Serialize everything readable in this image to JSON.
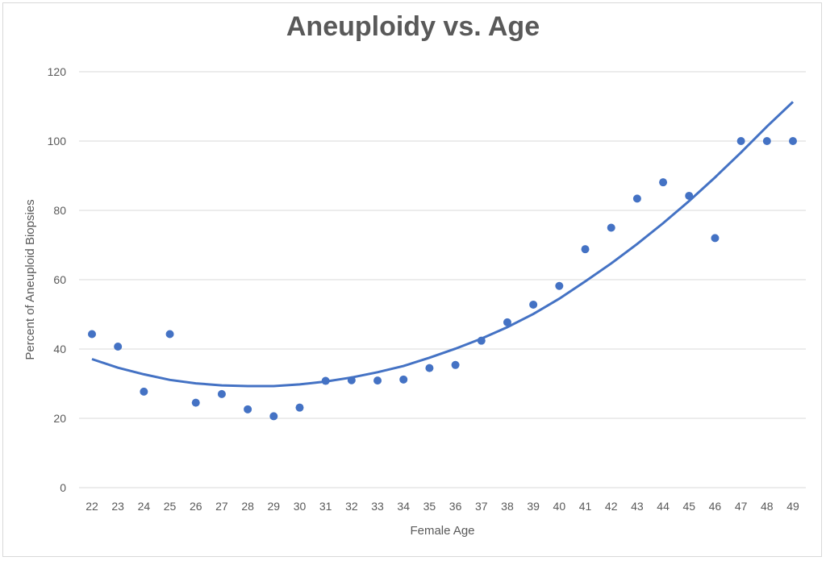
{
  "chart_data": {
    "type": "scatter",
    "title": "Aneuploidy vs. Age",
    "xlabel": "Female Age",
    "ylabel": "Percent of Aneuploid Biopsies",
    "ylim": [
      0,
      120
    ],
    "y_ticks": [
      "0",
      "20",
      "40",
      "60",
      "80",
      "100",
      "120"
    ],
    "x_ticks": [
      "22",
      "23",
      "24",
      "25",
      "26",
      "27",
      "28",
      "29",
      "30",
      "31",
      "32",
      "33",
      "34",
      "35",
      "36",
      "37",
      "38",
      "39",
      "40",
      "41",
      "42",
      "43",
      "44",
      "45",
      "46",
      "47",
      "48",
      "49"
    ],
    "grid": "horizontal",
    "legend": "none",
    "series": [
      {
        "x": [
          22,
          23,
          24,
          25,
          26,
          27,
          28,
          29,
          30,
          31,
          32,
          33,
          34,
          35,
          36,
          37,
          38,
          39,
          40,
          41,
          42,
          43,
          44,
          45,
          46,
          47,
          48,
          49
        ],
        "y": [
          44.3,
          40.7,
          27.7,
          44.3,
          24.5,
          27.0,
          22.6,
          20.6,
          23.1,
          30.8,
          31.0,
          30.9,
          31.2,
          34.5,
          35.4,
          42.4,
          47.7,
          52.8,
          58.2,
          68.8,
          75.0,
          83.4,
          88.1,
          84.2,
          72.0,
          100,
          100,
          100
        ],
        "color": "#4472c4"
      }
    ],
    "trendline": {
      "type": "polynomial-2",
      "color": "#4472c4",
      "x": [
        22,
        23,
        24,
        25,
        26,
        27,
        28,
        29,
        30,
        31,
        32,
        33,
        34,
        35,
        36,
        37,
        38,
        39,
        40,
        41,
        42,
        43,
        44,
        45,
        46,
        47,
        48,
        49
      ],
      "y": [
        37.1,
        34.6,
        32.7,
        31.1,
        30.1,
        29.5,
        29.3,
        29.3,
        29.8,
        30.6,
        31.8,
        33.3,
        35.1,
        37.5,
        40.1,
        43.0,
        46.3,
        50.1,
        54.5,
        59.5,
        64.7,
        70.3,
        76.3,
        82.7,
        89.5,
        96.7,
        104.2,
        111.3
      ]
    }
  }
}
